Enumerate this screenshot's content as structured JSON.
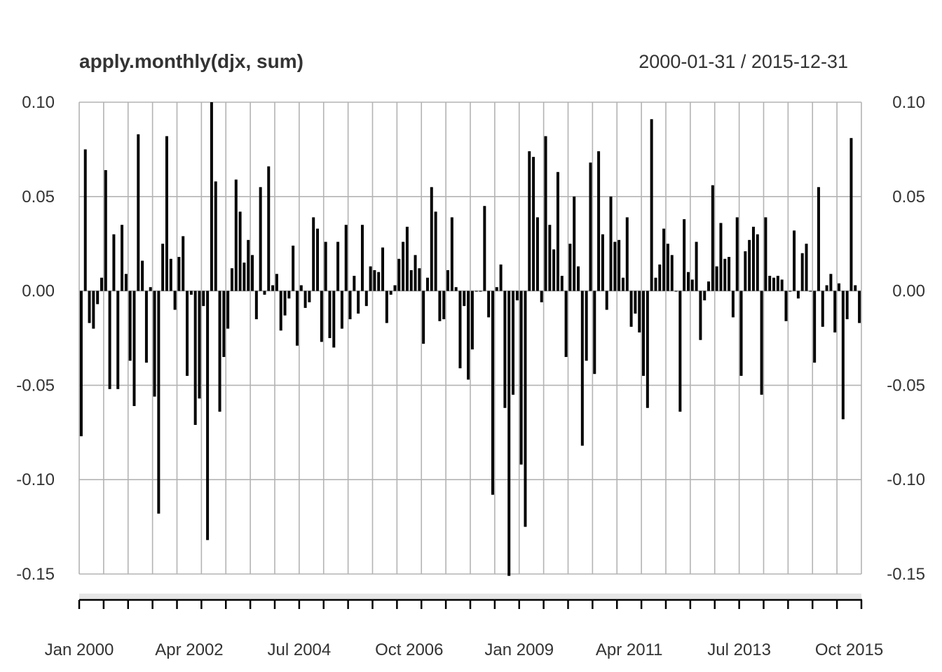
{
  "chart_data": {
    "type": "bar",
    "title": "apply.monthly(djx, sum)",
    "date_range": "2000-01-31 / 2015-12-31",
    "x_start": "2000-01",
    "x_end": "2015-12",
    "frequency": "monthly",
    "ylim": [
      -0.15,
      0.1
    ],
    "y_ticks": [
      "0.10",
      "0.05",
      "0.00",
      "-0.05",
      "-0.10",
      "-0.15"
    ],
    "x_tick_labels": [
      "Jan 2000",
      "Apr 2002",
      "Jul 2004",
      "Oct 2006",
      "Jan 2009",
      "Apr 2011",
      "Jul 2013",
      "Oct 2015"
    ],
    "grid": true,
    "bar_color": "#000000",
    "grid_color": "#b3b3b3",
    "values": [
      -0.077,
      0.075,
      -0.017,
      -0.02,
      -0.007,
      0.007,
      0.064,
      -0.052,
      0.03,
      -0.052,
      0.035,
      0.009,
      -0.037,
      -0.061,
      0.083,
      0.016,
      -0.038,
      0.002,
      -0.056,
      -0.118,
      0.025,
      0.082,
      0.017,
      -0.01,
      0.018,
      0.029,
      -0.045,
      -0.002,
      -0.071,
      -0.057,
      -0.008,
      -0.132,
      0.1,
      0.058,
      -0.064,
      -0.035,
      -0.02,
      0.012,
      0.059,
      0.042,
      0.015,
      0.027,
      0.019,
      -0.015,
      0.055,
      -0.002,
      0.066,
      0.003,
      0.009,
      -0.021,
      -0.013,
      -0.004,
      0.024,
      -0.029,
      0.003,
      -0.009,
      -0.006,
      0.039,
      0.033,
      -0.027,
      0.026,
      -0.025,
      -0.03,
      0.026,
      -0.02,
      0.035,
      -0.015,
      0.008,
      -0.012,
      0.035,
      -0.008,
      0.013,
      0.011,
      0.01,
      0.023,
      -0.017,
      -0.002,
      0.003,
      0.017,
      0.026,
      0.034,
      0.011,
      0.019,
      0.012,
      -0.028,
      0.007,
      0.055,
      0.042,
      -0.016,
      -0.015,
      0.011,
      0.039,
      0.002,
      -0.041,
      -0.008,
      -0.047,
      -0.031,
      0.0,
      0.0,
      0.045,
      -0.014,
      -0.108,
      0.002,
      0.014,
      -0.062,
      -0.151,
      -0.055,
      -0.005,
      -0.092,
      -0.125,
      0.074,
      0.071,
      0.039,
      -0.006,
      0.082,
      0.035,
      0.022,
      0.063,
      0.008,
      -0.035,
      0.025,
      0.05,
      0.013,
      -0.082,
      -0.037,
      0.068,
      -0.044,
      0.074,
      0.03,
      -0.01,
      0.05,
      0.026,
      0.027,
      0.007,
      0.039,
      -0.019,
      -0.012,
      -0.022,
      -0.045,
      -0.062,
      0.091,
      0.007,
      0.014,
      0.033,
      0.025,
      0.019,
      0.0,
      -0.064,
      0.038,
      0.01,
      0.006,
      0.026,
      -0.026,
      -0.005,
      0.005,
      0.056,
      0.013,
      0.036,
      0.017,
      0.018,
      -0.014,
      0.039,
      -0.045,
      0.021,
      0.027,
      0.034,
      0.03,
      -0.055,
      0.039,
      0.008,
      0.007,
      0.008,
      0.006,
      -0.016,
      0.0,
      0.032,
      -0.004,
      0.02,
      0.025,
      0.0,
      -0.038,
      0.055,
      -0.019,
      0.003,
      0.009,
      -0.022,
      0.004,
      -0.068,
      -0.015,
      0.081,
      0.003,
      -0.017
    ]
  }
}
